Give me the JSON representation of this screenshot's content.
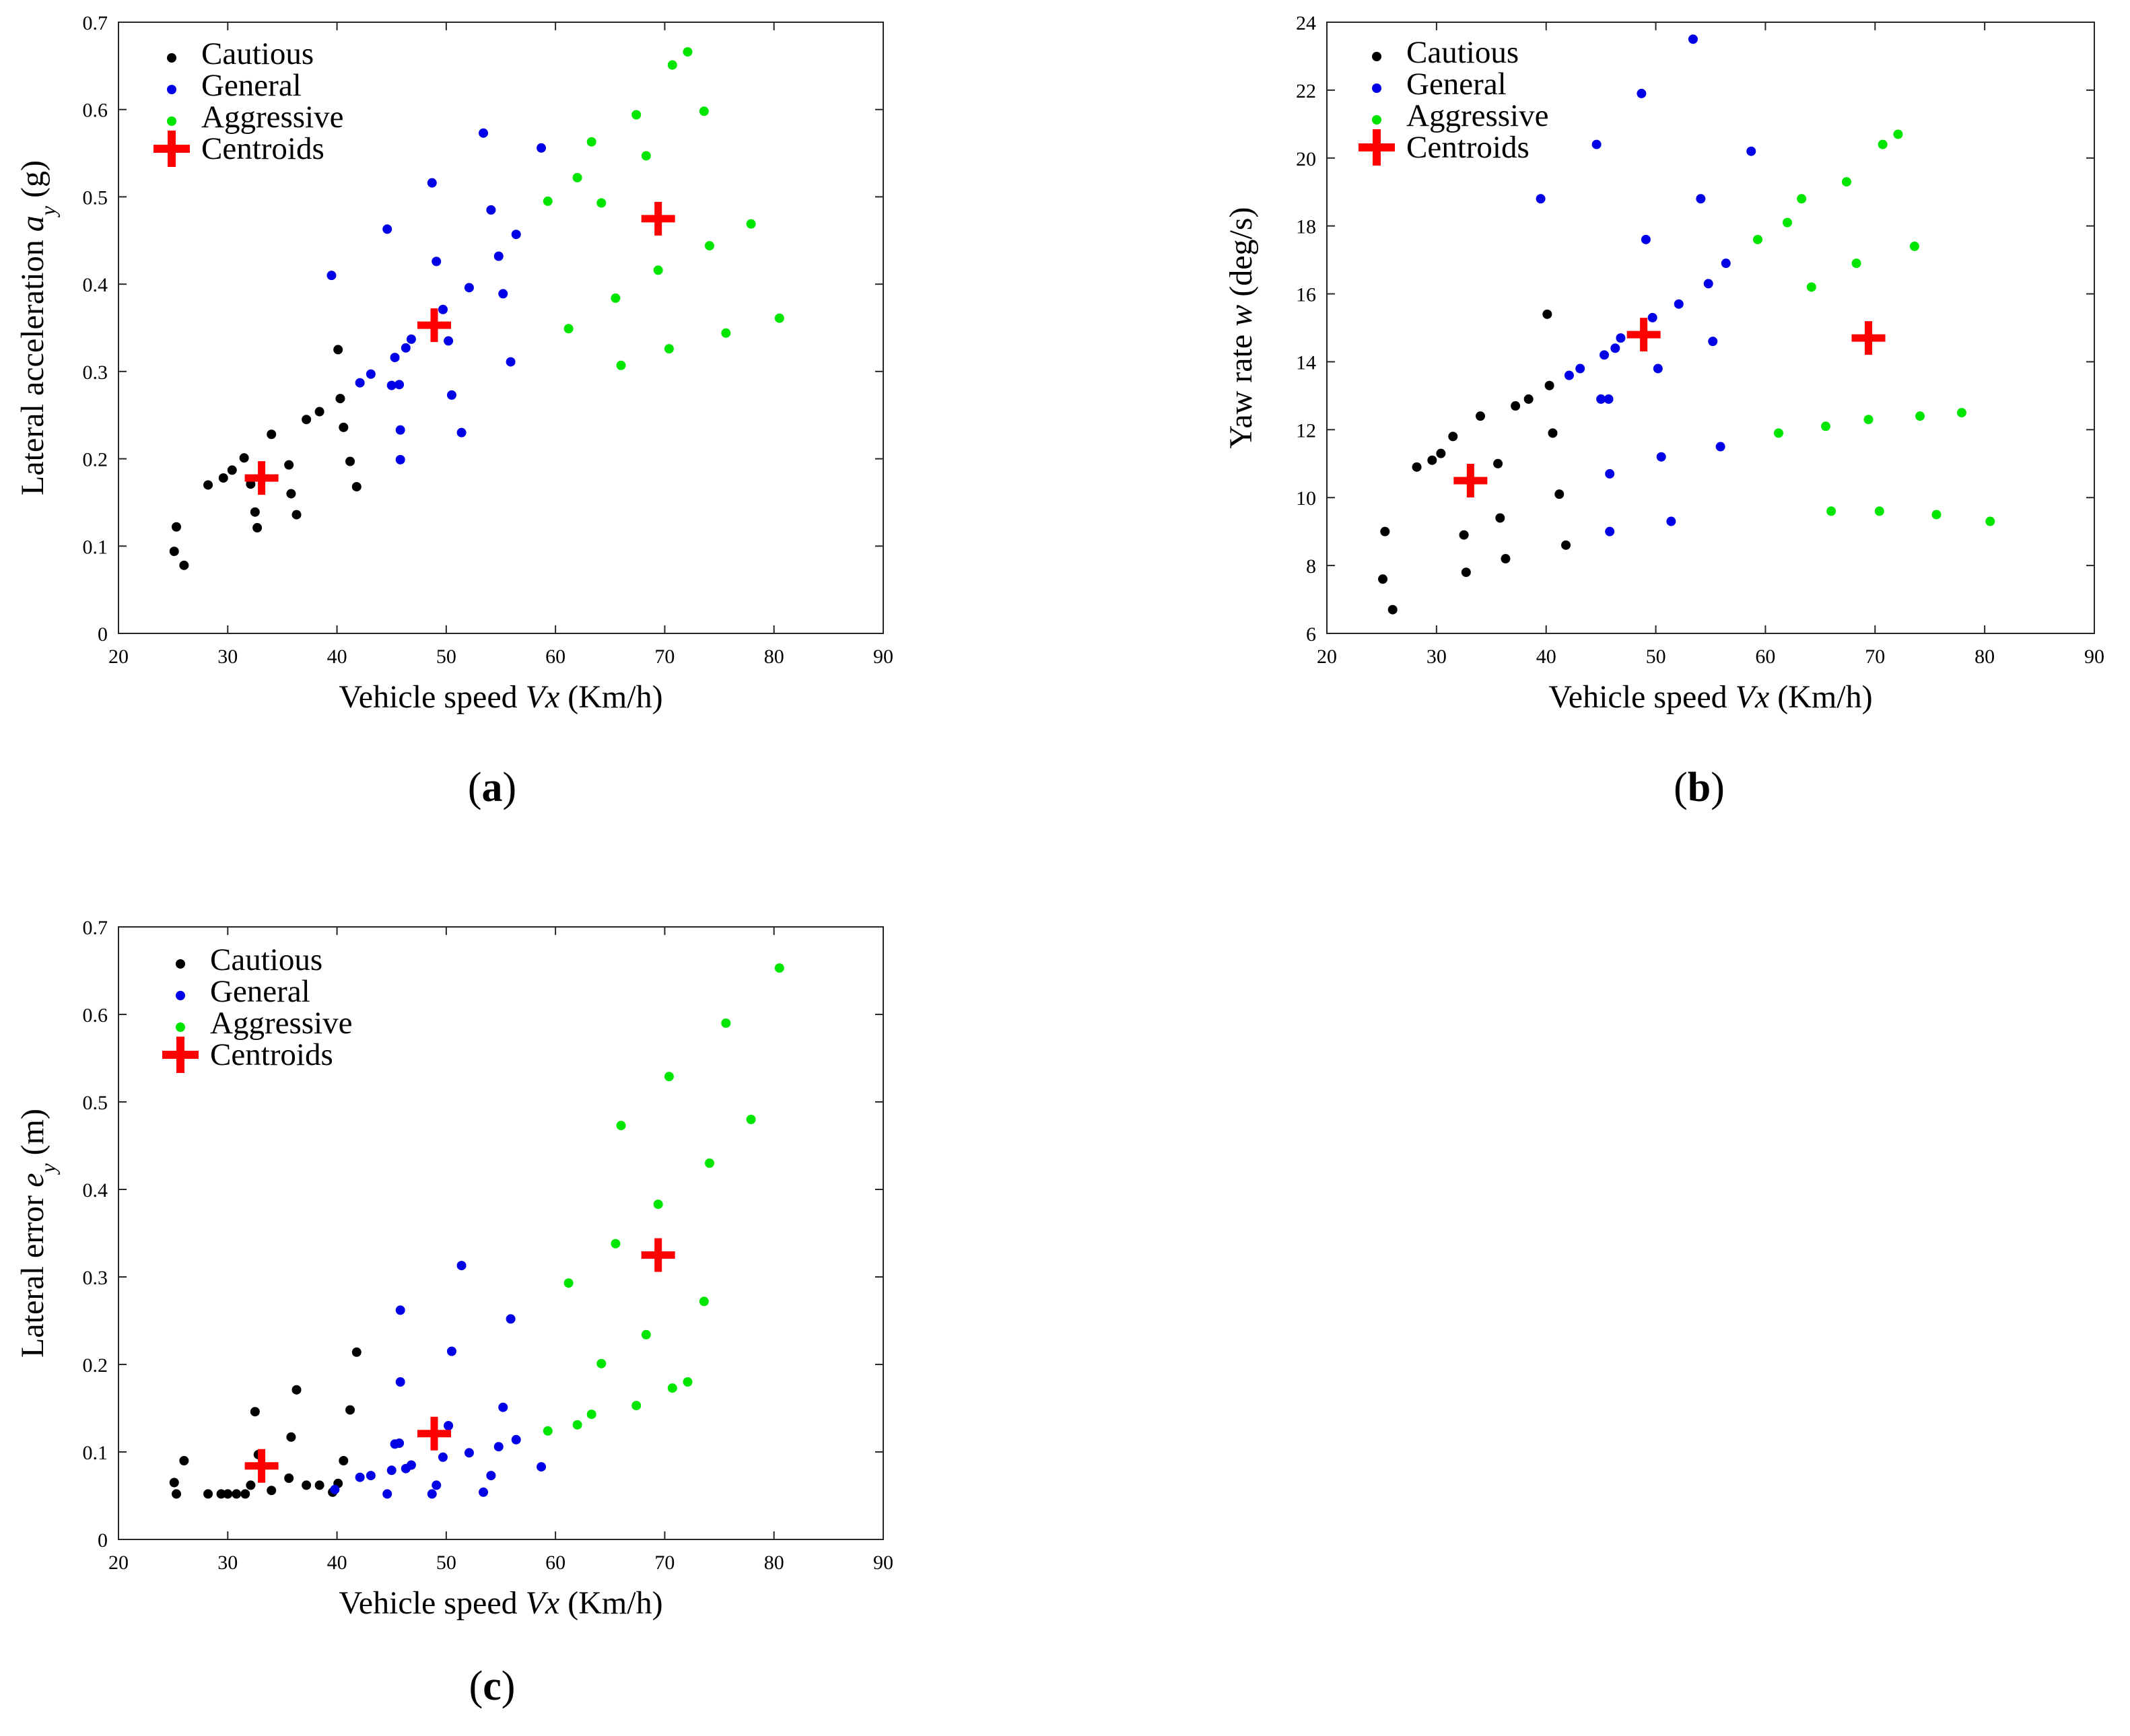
{
  "figure": {
    "panel_labels": [
      {
        "open": "(",
        "letter": "a",
        "close": ")"
      },
      {
        "open": "(",
        "letter": "b",
        "close": ")"
      },
      {
        "open": "(",
        "letter": "c",
        "close": ")"
      }
    ]
  },
  "colors": {
    "cautious": "#000000",
    "general": "#0000e6",
    "aggressive": "#00e600",
    "centroids": "#ff0000",
    "axes": "#262626"
  },
  "chart_data": [
    {
      "type": "scatter",
      "panel": "a",
      "xlabel": "Vehicle speed Vx (Km/h)",
      "xlabel_parts": [
        "Vehicle speed ",
        "Vx",
        " (Km/h)"
      ],
      "ylabel": "Lateral acceleration ay (g)",
      "ylabel_parts": [
        "Lateral acceleration ",
        "a",
        "y",
        " (g)"
      ],
      "xlim": [
        20,
        90
      ],
      "ylim": [
        0,
        0.7
      ],
      "xticks": [
        "20",
        "30",
        "40",
        "50",
        "60",
        "70",
        "80",
        "90"
      ],
      "yticks": [
        "0",
        "0.1",
        "0.2",
        "0.3",
        "0.4",
        "0.5",
        "0.6",
        "0.7"
      ],
      "legend": [
        "Cautious",
        "General",
        "Aggressive",
        "Centroids"
      ],
      "legend_position": "top-left",
      "series": [
        {
          "name": "Cautious",
          "points": [
            [
              25.1,
              0.094
            ],
            [
              25.3,
              0.122
            ],
            [
              26.0,
              0.078
            ],
            [
              28.2,
              0.17
            ],
            [
              29.6,
              0.178
            ],
            [
              30.4,
              0.187
            ],
            [
              31.5,
              0.201
            ],
            [
              32.1,
              0.171
            ],
            [
              32.5,
              0.139
            ],
            [
              32.7,
              0.121
            ],
            [
              34.0,
              0.228
            ],
            [
              35.6,
              0.193
            ],
            [
              35.8,
              0.16
            ],
            [
              36.3,
              0.136
            ],
            [
              37.2,
              0.245
            ],
            [
              38.4,
              0.254
            ],
            [
              40.1,
              0.325
            ],
            [
              40.3,
              0.269
            ],
            [
              40.6,
              0.236
            ],
            [
              41.2,
              0.197
            ],
            [
              41.8,
              0.168
            ]
          ]
        },
        {
          "name": "General",
          "points": [
            [
              39.5,
              0.41
            ],
            [
              42.1,
              0.287
            ],
            [
              43.1,
              0.297
            ],
            [
              44.6,
              0.463
            ],
            [
              45.0,
              0.284
            ],
            [
              45.3,
              0.316
            ],
            [
              45.7,
              0.285
            ],
            [
              45.8,
              0.233
            ],
            [
              45.8,
              0.199
            ],
            [
              46.3,
              0.327
            ],
            [
              46.8,
              0.337
            ],
            [
              48.7,
              0.516
            ],
            [
              49.1,
              0.426
            ],
            [
              49.7,
              0.371
            ],
            [
              50.2,
              0.335
            ],
            [
              50.5,
              0.273
            ],
            [
              51.4,
              0.23
            ],
            [
              52.1,
              0.396
            ],
            [
              53.4,
              0.573
            ],
            [
              54.1,
              0.485
            ],
            [
              54.8,
              0.432
            ],
            [
              55.2,
              0.389
            ],
            [
              55.9,
              0.311
            ],
            [
              56.4,
              0.457
            ],
            [
              58.7,
              0.556
            ]
          ]
        },
        {
          "name": "Aggressive",
          "points": [
            [
              59.3,
              0.495
            ],
            [
              61.2,
              0.349
            ],
            [
              62.0,
              0.522
            ],
            [
              63.3,
              0.563
            ],
            [
              64.2,
              0.493
            ],
            [
              65.5,
              0.384
            ],
            [
              66.0,
              0.307
            ],
            [
              67.4,
              0.594
            ],
            [
              68.3,
              0.547
            ],
            [
              69.4,
              0.416
            ],
            [
              70.4,
              0.326
            ],
            [
              70.7,
              0.651
            ],
            [
              72.1,
              0.666
            ],
            [
              73.6,
              0.598
            ],
            [
              74.1,
              0.444
            ],
            [
              75.6,
              0.344
            ],
            [
              77.9,
              0.469
            ],
            [
              80.5,
              0.361
            ]
          ]
        },
        {
          "name": "Centroids",
          "points": [
            [
              33.1,
              0.178
            ],
            [
              48.9,
              0.353
            ],
            [
              69.4,
              0.475
            ]
          ]
        }
      ]
    },
    {
      "type": "scatter",
      "panel": "b",
      "xlabel": "Vehicle speed Vx (Km/h)",
      "xlabel_parts": [
        "Vehicle speed ",
        "Vx",
        " (Km/h)"
      ],
      "ylabel": "Yaw rate w (deg/s)",
      "ylabel_parts": [
        "Yaw rate ",
        "w",
        "",
        " (deg/s)"
      ],
      "xlim": [
        20,
        90
      ],
      "ylim": [
        6,
        24
      ],
      "xticks": [
        "20",
        "30",
        "40",
        "50",
        "60",
        "70",
        "80",
        "90"
      ],
      "yticks": [
        "6",
        "8",
        "10",
        "12",
        "14",
        "16",
        "18",
        "20",
        "22",
        "24"
      ],
      "legend": [
        "Cautious",
        "General",
        "Aggressive",
        "Centroids"
      ],
      "legend_position": "top-left",
      "series": [
        {
          "name": "Cautious",
          "points": [
            [
              25.1,
              7.6
            ],
            [
              25.3,
              9.0
            ],
            [
              26.0,
              6.7
            ],
            [
              28.2,
              10.9
            ],
            [
              29.6,
              11.1
            ],
            [
              30.4,
              11.3
            ],
            [
              31.5,
              11.8
            ],
            [
              32.5,
              8.9
            ],
            [
              32.7,
              7.8
            ],
            [
              34.0,
              12.4
            ],
            [
              35.6,
              11.0
            ],
            [
              35.8,
              9.4
            ],
            [
              36.3,
              8.2
            ],
            [
              37.2,
              12.7
            ],
            [
              38.4,
              12.9
            ],
            [
              40.1,
              15.4
            ],
            [
              40.3,
              13.3
            ],
            [
              40.6,
              11.9
            ],
            [
              41.2,
              10.1
            ],
            [
              41.8,
              8.6
            ]
          ]
        },
        {
          "name": "General",
          "points": [
            [
              39.5,
              18.8
            ],
            [
              42.1,
              13.6
            ],
            [
              43.1,
              13.8
            ],
            [
              44.6,
              20.4
            ],
            [
              45.0,
              12.9
            ],
            [
              45.3,
              14.2
            ],
            [
              45.7,
              12.9
            ],
            [
              45.8,
              10.7
            ],
            [
              45.8,
              9.0
            ],
            [
              46.3,
              14.4
            ],
            [
              46.8,
              14.7
            ],
            [
              48.7,
              21.9
            ],
            [
              49.1,
              17.6
            ],
            [
              49.7,
              15.3
            ],
            [
              50.2,
              13.8
            ],
            [
              50.5,
              11.2
            ],
            [
              51.4,
              9.3
            ],
            [
              52.1,
              15.7
            ],
            [
              53.4,
              23.5
            ],
            [
              54.1,
              18.8
            ],
            [
              54.8,
              16.3
            ],
            [
              55.2,
              14.6
            ],
            [
              55.9,
              11.5
            ],
            [
              56.4,
              16.9
            ],
            [
              58.7,
              20.2
            ]
          ]
        },
        {
          "name": "Aggressive",
          "points": [
            [
              59.3,
              17.6
            ],
            [
              61.2,
              11.9
            ],
            [
              62.0,
              18.1
            ],
            [
              63.3,
              18.8
            ],
            [
              64.2,
              16.2
            ],
            [
              65.5,
              12.1
            ],
            [
              66.0,
              9.6
            ],
            [
              67.4,
              19.3
            ],
            [
              68.3,
              16.9
            ],
            [
              69.4,
              12.3
            ],
            [
              70.4,
              9.6
            ],
            [
              70.7,
              20.4
            ],
            [
              72.1,
              20.7
            ],
            [
              73.6,
              17.4
            ],
            [
              74.1,
              12.4
            ],
            [
              75.6,
              9.5
            ],
            [
              77.9,
              12.5
            ],
            [
              80.5,
              9.3
            ]
          ]
        },
        {
          "name": "Centroids",
          "points": [
            [
              33.1,
              10.5
            ],
            [
              48.9,
              14.8
            ],
            [
              69.4,
              14.7
            ]
          ]
        }
      ]
    },
    {
      "type": "scatter",
      "panel": "c",
      "xlabel": "Vehicle speed Vx (Km/h)",
      "xlabel_parts": [
        "Vehicle speed ",
        "Vx",
        " (Km/h)"
      ],
      "ylabel": "Lateral error ey (m)",
      "ylabel_parts": [
        "Lateral error ",
        "e",
        "y",
        " (m)"
      ],
      "xlim": [
        20,
        90
      ],
      "ylim": [
        0,
        0.7
      ],
      "xticks": [
        "20",
        "30",
        "40",
        "50",
        "60",
        "70",
        "80",
        "90"
      ],
      "yticks": [
        "0",
        "0.1",
        "0.2",
        "0.3",
        "0.4",
        "0.5",
        "0.6",
        "0.7"
      ],
      "legend": [
        "Cautious",
        "General",
        "Aggressive",
        "Centroids"
      ],
      "legend_position": "top-left",
      "series": [
        {
          "name": "Cautious",
          "points": [
            [
              25.1,
              0.065
            ],
            [
              25.3,
              0.052
            ],
            [
              26.0,
              0.09
            ],
            [
              28.2,
              0.052
            ],
            [
              29.4,
              0.052
            ],
            [
              30.0,
              0.052
            ],
            [
              30.8,
              0.052
            ],
            [
              31.6,
              0.052
            ],
            [
              32.1,
              0.062
            ],
            [
              32.5,
              0.146
            ],
            [
              32.8,
              0.097
            ],
            [
              34.0,
              0.056
            ],
            [
              35.6,
              0.07
            ],
            [
              35.8,
              0.117
            ],
            [
              36.3,
              0.171
            ],
            [
              37.2,
              0.062
            ],
            [
              38.4,
              0.062
            ],
            [
              39.6,
              0.054
            ],
            [
              40.1,
              0.064
            ],
            [
              40.6,
              0.09
            ],
            [
              41.2,
              0.148
            ],
            [
              41.8,
              0.214
            ]
          ]
        },
        {
          "name": "General",
          "points": [
            [
              39.8,
              0.057
            ],
            [
              42.1,
              0.071
            ],
            [
              43.1,
              0.073
            ],
            [
              44.6,
              0.052
            ],
            [
              45.0,
              0.079
            ],
            [
              45.3,
              0.109
            ],
            [
              45.7,
              0.11
            ],
            [
              45.8,
              0.18
            ],
            [
              45.8,
              0.262
            ],
            [
              46.3,
              0.081
            ],
            [
              46.8,
              0.085
            ],
            [
              48.7,
              0.052
            ],
            [
              49.1,
              0.062
            ],
            [
              49.7,
              0.094
            ],
            [
              50.2,
              0.13
            ],
            [
              50.5,
              0.215
            ],
            [
              51.4,
              0.313
            ],
            [
              52.1,
              0.099
            ],
            [
              53.4,
              0.054
            ],
            [
              54.1,
              0.073
            ],
            [
              54.8,
              0.106
            ],
            [
              55.2,
              0.151
            ],
            [
              55.9,
              0.252
            ],
            [
              56.4,
              0.114
            ],
            [
              58.7,
              0.083
            ]
          ]
        },
        {
          "name": "Aggressive",
          "points": [
            [
              59.3,
              0.124
            ],
            [
              61.2,
              0.293
            ],
            [
              62.0,
              0.131
            ],
            [
              63.3,
              0.143
            ],
            [
              64.2,
              0.201
            ],
            [
              65.5,
              0.338
            ],
            [
              66.0,
              0.473
            ],
            [
              67.4,
              0.153
            ],
            [
              68.3,
              0.234
            ],
            [
              69.4,
              0.383
            ],
            [
              70.4,
              0.529
            ],
            [
              70.7,
              0.173
            ],
            [
              72.1,
              0.18
            ],
            [
              73.6,
              0.272
            ],
            [
              74.1,
              0.43
            ],
            [
              75.6,
              0.59
            ],
            [
              77.9,
              0.48
            ],
            [
              80.5,
              0.653
            ]
          ]
        },
        {
          "name": "Centroids",
          "points": [
            [
              33.1,
              0.084
            ],
            [
              48.9,
              0.121
            ],
            [
              69.4,
              0.325
            ]
          ]
        }
      ]
    }
  ]
}
